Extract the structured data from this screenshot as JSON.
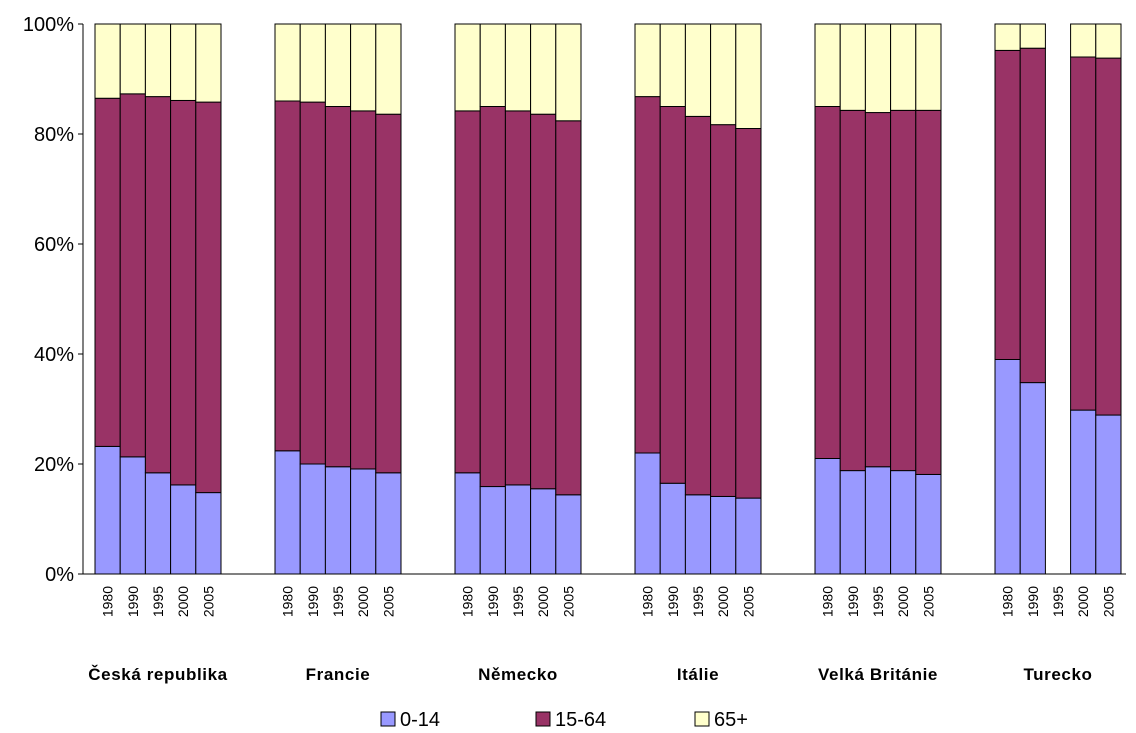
{
  "chart_data": {
    "type": "bar",
    "stacked": "percent",
    "ylim": [
      0,
      100
    ],
    "y_ticks": [
      "0%",
      "20%",
      "40%",
      "60%",
      "80%",
      "100%"
    ],
    "grid": false,
    "legend_position": "bottom",
    "series": [
      {
        "name": "0-14",
        "color": "#9999ff"
      },
      {
        "name": "15-64",
        "color": "#993366"
      },
      {
        "name": "65+",
        "color": "#ffffcc"
      }
    ],
    "groups": [
      {
        "name": "Česká republika",
        "years": [
          "1980",
          "1990",
          "1995",
          "2000",
          "2005"
        ],
        "values": [
          [
            23.2,
            63.3,
            13.5
          ],
          [
            21.3,
            66.0,
            12.7
          ],
          [
            18.4,
            68.4,
            13.2
          ],
          [
            16.2,
            69.9,
            13.9
          ],
          [
            14.8,
            71.0,
            14.2
          ]
        ]
      },
      {
        "name": "Francie",
        "years": [
          "1980",
          "1990",
          "1995",
          "2000",
          "2005"
        ],
        "values": [
          [
            22.4,
            63.6,
            14.0
          ],
          [
            20.0,
            65.8,
            14.2
          ],
          [
            19.5,
            65.5,
            15.0
          ],
          [
            19.1,
            65.1,
            15.8
          ],
          [
            18.4,
            65.2,
            16.4
          ]
        ]
      },
      {
        "name": "Německo",
        "years": [
          "1980",
          "1990",
          "1995",
          "2000",
          "2005"
        ],
        "values": [
          [
            18.4,
            65.8,
            15.8
          ],
          [
            15.9,
            69.1,
            15.0
          ],
          [
            16.2,
            68.0,
            15.8
          ],
          [
            15.5,
            68.1,
            16.4
          ],
          [
            14.4,
            68.0,
            17.6
          ]
        ]
      },
      {
        "name": "Itálie",
        "years": [
          "1980",
          "1990",
          "1995",
          "2000",
          "2005"
        ],
        "values": [
          [
            22.0,
            64.8,
            13.2
          ],
          [
            16.5,
            68.5,
            15.0
          ],
          [
            14.4,
            68.8,
            16.8
          ],
          [
            14.1,
            67.6,
            18.3
          ],
          [
            13.8,
            67.2,
            19.0
          ]
        ]
      },
      {
        "name": "Velká Británie",
        "years": [
          "1980",
          "1990",
          "1995",
          "2000",
          "2005"
        ],
        "values": [
          [
            21.0,
            64.0,
            15.0
          ],
          [
            18.8,
            65.5,
            15.7
          ],
          [
            19.5,
            64.4,
            16.1
          ],
          [
            18.8,
            65.5,
            15.7
          ],
          [
            18.1,
            66.2,
            15.7
          ]
        ]
      },
      {
        "name": "Turecko",
        "years": [
          "1980",
          "1990",
          "1995",
          "2000",
          "2005"
        ],
        "values": [
          [
            39.0,
            56.2,
            4.8
          ],
          [
            34.8,
            60.8,
            4.4
          ],
          null,
          [
            29.8,
            64.2,
            6.0
          ],
          [
            28.9,
            64.9,
            6.2
          ]
        ]
      }
    ]
  }
}
